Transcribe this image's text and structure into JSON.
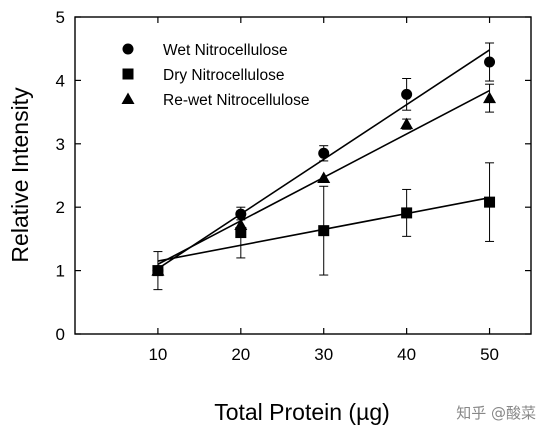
{
  "chart_data": {
    "type": "scatter",
    "xlabel": "Total Protein (µg)",
    "ylabel": "Relative Intensity",
    "xlim": [
      0,
      55
    ],
    "ylim": [
      0,
      5
    ],
    "x_ticks": [
      "10",
      "20",
      "30",
      "40",
      "50"
    ],
    "y_ticks": [
      "0",
      "1",
      "2",
      "3",
      "4",
      "5"
    ],
    "grid": false,
    "legend_position": "top-left",
    "x": [
      10,
      20,
      30,
      40,
      50
    ],
    "series": [
      {
        "name": "Wet Nitrocellulose",
        "marker": "circle",
        "values": [
          1.0,
          1.89,
          2.85,
          3.78,
          4.29
        ],
        "error": [
          0.0,
          0.05,
          0.12,
          0.25,
          0.3
        ],
        "fit": [
          1.03,
          4.48
        ]
      },
      {
        "name": "Dry Nitrocellulose",
        "marker": "square",
        "values": [
          1.0,
          1.6,
          1.63,
          1.91,
          2.08
        ],
        "error": [
          0.3,
          0.4,
          0.7,
          0.37,
          0.62
        ],
        "fit": [
          1.15,
          2.15
        ]
      },
      {
        "name": "Re-wet Nitrocellulose",
        "marker": "triangle",
        "values": [
          1.0,
          1.72,
          2.46,
          3.31,
          3.72
        ],
        "error": [
          0.0,
          0.08,
          0.0,
          0.08,
          0.22
        ],
        "fit": [
          1.1,
          3.84
        ]
      }
    ]
  },
  "watermark": "知乎 @酸菜"
}
